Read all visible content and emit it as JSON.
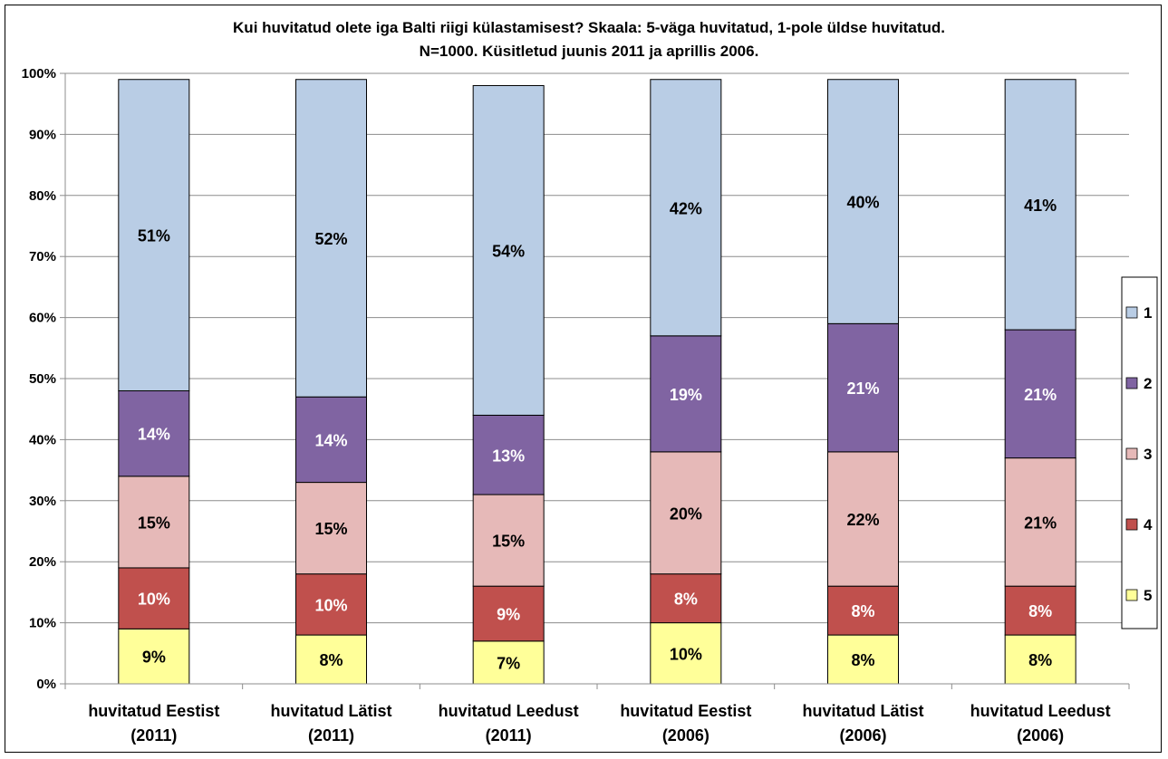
{
  "chart_data": {
    "type": "bar",
    "stacked": true,
    "title_lines": [
      "Kui huvitatud olete iga Balti riigi külastamisest? Skaala: 5-väga huvitatud, 1-pole üldse huvitatud.",
      "N=1000. Küsitletud juunis 2011 ja aprillis 2006."
    ],
    "categories": [
      [
        "huvitatud Eestist",
        "(2011)"
      ],
      [
        "huvitatud Lätist",
        "(2011)"
      ],
      [
        "huvitatud Leedust",
        "(2011)"
      ],
      [
        "huvitatud Eestist",
        "(2006)"
      ],
      [
        "huvitatud Lätist",
        "(2006)"
      ],
      [
        "huvitatud Leedust",
        "(2006)"
      ]
    ],
    "ylim": [
      0,
      100
    ],
    "y_ticks": [
      "0%",
      "10%",
      "20%",
      "30%",
      "40%",
      "50%",
      "60%",
      "70%",
      "80%",
      "90%",
      "100%"
    ],
    "grid": true,
    "legend_position": "right",
    "series": [
      {
        "name": "5",
        "color": "#FFFF99",
        "values": [
          9,
          8,
          7,
          10,
          8,
          8
        ],
        "labels": [
          "9%",
          "8%",
          "7%",
          "10%",
          "8%",
          "8%"
        ],
        "label_color": "#000000"
      },
      {
        "name": "4",
        "color": "#C0504D",
        "values": [
          10,
          10,
          9,
          8,
          8,
          8
        ],
        "labels": [
          "10%",
          "10%",
          "9%",
          "8%",
          "8%",
          "8%"
        ],
        "label_color": "#FFFFFF"
      },
      {
        "name": "3",
        "color": "#E6B9B8",
        "values": [
          15,
          15,
          15,
          20,
          22,
          21
        ],
        "labels": [
          "15%",
          "15%",
          "15%",
          "20%",
          "22%",
          "21%"
        ],
        "label_color": "#000000"
      },
      {
        "name": "2",
        "color": "#8064A2",
        "values": [
          14,
          14,
          13,
          19,
          21,
          21
        ],
        "labels": [
          "14%",
          "14%",
          "13%",
          "19%",
          "21%",
          "21%"
        ],
        "label_color": "#FFFFFF"
      },
      {
        "name": "1",
        "color": "#B9CDE5",
        "values": [
          51,
          52,
          54,
          42,
          40,
          41
        ],
        "labels": [
          "51%",
          "52%",
          "54%",
          "42%",
          "40%",
          "41%"
        ],
        "label_color": "#000000"
      }
    ],
    "legend_order": [
      "1",
      "2",
      "3",
      "4",
      "5"
    ]
  }
}
